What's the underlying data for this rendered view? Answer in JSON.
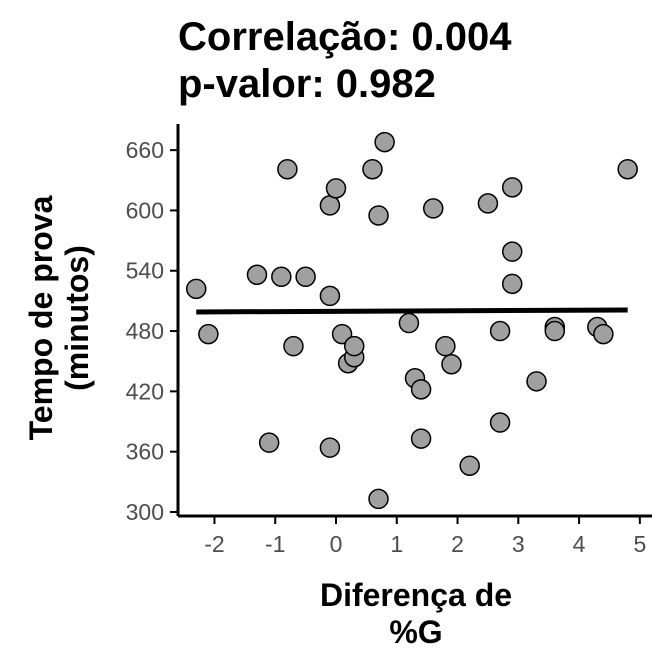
{
  "chart_data": {
    "type": "scatter",
    "title_lines": [
      "Correlação: 0.004",
      "p-valor: 0.982"
    ],
    "xlabel_lines": [
      "Diferença de",
      "%G"
    ],
    "ylabel_lines": [
      "Tempo de prova",
      "(minutos)"
    ],
    "xlim": [
      -2.6,
      5.2
    ],
    "ylim": [
      296,
      686
    ],
    "x_ticks": [
      -2,
      -1,
      0,
      1,
      2,
      3,
      4,
      5
    ],
    "y_ticks": [
      300,
      360,
      420,
      480,
      540,
      600,
      660
    ],
    "grid": false,
    "points": [
      {
        "x": -2.3,
        "y": 522
      },
      {
        "x": -2.1,
        "y": 477
      },
      {
        "x": -1.3,
        "y": 536
      },
      {
        "x": -1.1,
        "y": 369
      },
      {
        "x": -0.9,
        "y": 534
      },
      {
        "x": -0.8,
        "y": 641
      },
      {
        "x": -0.7,
        "y": 465
      },
      {
        "x": -0.5,
        "y": 534
      },
      {
        "x": -0.1,
        "y": 605
      },
      {
        "x": -0.1,
        "y": 515
      },
      {
        "x": -0.1,
        "y": 364
      },
      {
        "x": 0.0,
        "y": 622
      },
      {
        "x": 0.1,
        "y": 477
      },
      {
        "x": 0.2,
        "y": 448
      },
      {
        "x": 0.3,
        "y": 454
      },
      {
        "x": 0.3,
        "y": 465
      },
      {
        "x": 0.6,
        "y": 641
      },
      {
        "x": 0.7,
        "y": 595
      },
      {
        "x": 0.7,
        "y": 313
      },
      {
        "x": 0.8,
        "y": 668
      },
      {
        "x": 1.2,
        "y": 488
      },
      {
        "x": 1.3,
        "y": 433
      },
      {
        "x": 1.4,
        "y": 422
      },
      {
        "x": 1.4,
        "y": 373
      },
      {
        "x": 1.6,
        "y": 602
      },
      {
        "x": 1.8,
        "y": 465
      },
      {
        "x": 1.9,
        "y": 447
      },
      {
        "x": 2.2,
        "y": 346
      },
      {
        "x": 2.5,
        "y": 607
      },
      {
        "x": 2.7,
        "y": 480
      },
      {
        "x": 2.7,
        "y": 389
      },
      {
        "x": 2.9,
        "y": 623
      },
      {
        "x": 2.9,
        "y": 559
      },
      {
        "x": 2.9,
        "y": 527
      },
      {
        "x": 3.3,
        "y": 430
      },
      {
        "x": 3.6,
        "y": 484
      },
      {
        "x": 3.6,
        "y": 480
      },
      {
        "x": 4.3,
        "y": 484
      },
      {
        "x": 4.4,
        "y": 477
      },
      {
        "x": 4.8,
        "y": 641
      }
    ],
    "fit_line": {
      "x": [
        -2.3,
        4.8
      ],
      "y": [
        499,
        501
      ]
    }
  }
}
